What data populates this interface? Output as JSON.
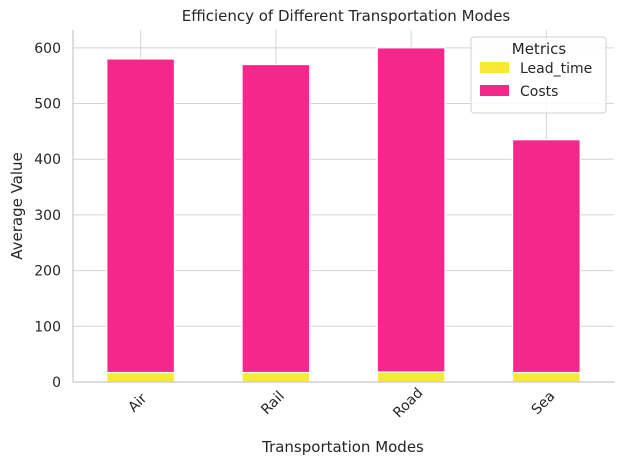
{
  "chart_data": {
    "type": "bar",
    "stacked": true,
    "title": "Efficiency of Different Transportation Modes",
    "xlabel": "Transportation Modes",
    "ylabel": "Average Value",
    "categories": [
      "Air",
      "Rail",
      "Road",
      "Sea"
    ],
    "series": [
      {
        "name": "Lead_time",
        "values": [
          17,
          17,
          18,
          17
        ],
        "color": "#f7e934"
      },
      {
        "name": "Costs",
        "values": [
          563,
          553,
          582,
          418
        ],
        "color": "#f5278a"
      }
    ],
    "ylim": [
      0,
      632
    ],
    "yticks": [
      0,
      100,
      200,
      300,
      400,
      500,
      600
    ],
    "grid": true,
    "legend": {
      "title": "Metrics",
      "placement": "top-right"
    }
  }
}
